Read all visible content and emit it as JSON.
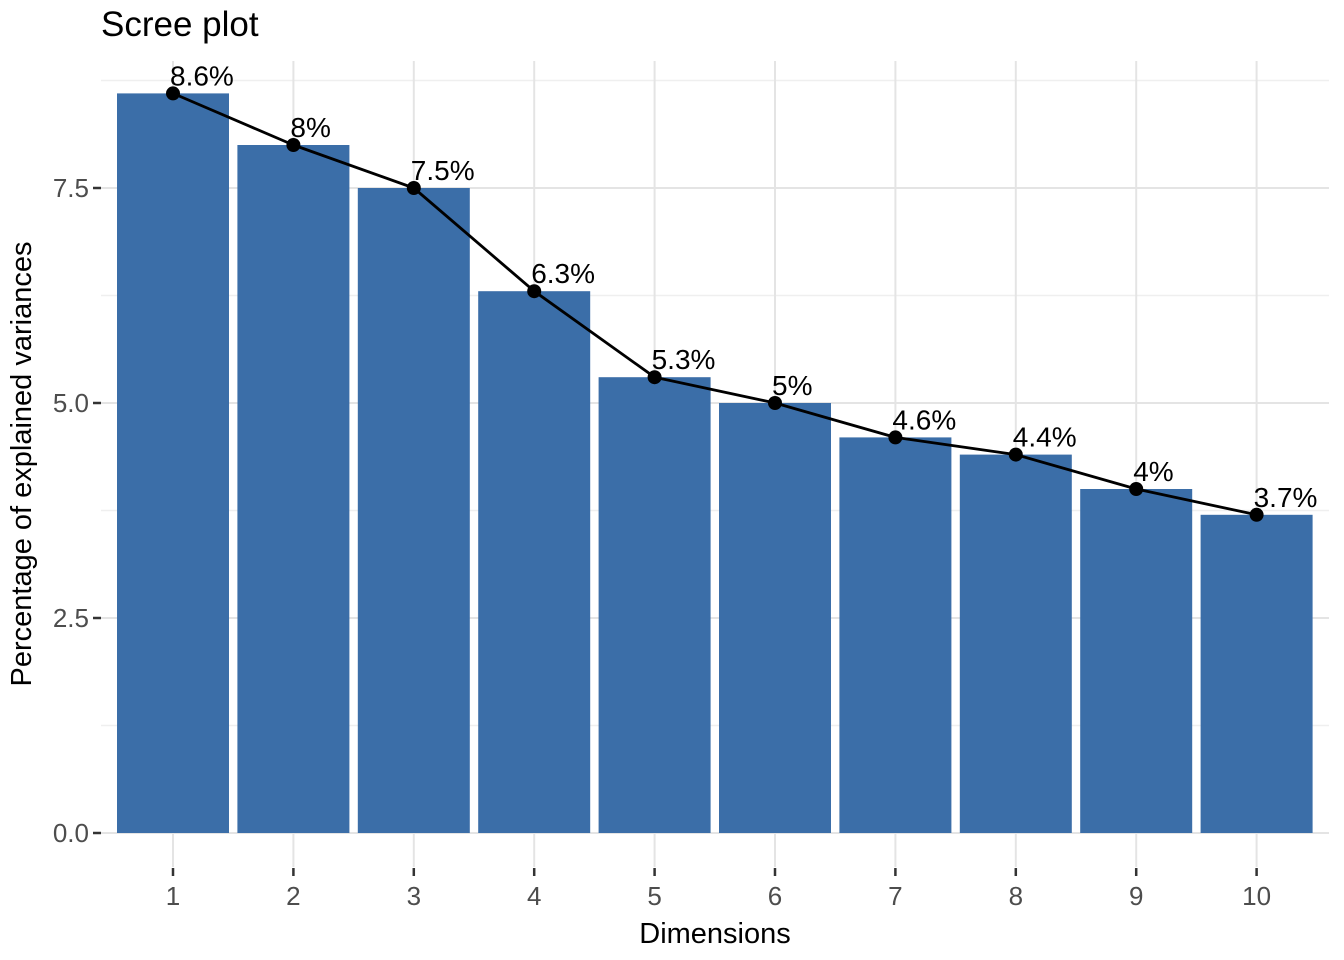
{
  "chart_data": {
    "type": "bar-line-combo",
    "title": "Scree plot",
    "xlabel": "Dimensions",
    "ylabel": "Percentage of explained variances",
    "categories": [
      "1",
      "2",
      "3",
      "4",
      "5",
      "6",
      "7",
      "8",
      "9",
      "10"
    ],
    "series": [
      {
        "name": "explained-variance-bars",
        "type": "bar",
        "values": [
          8.6,
          8,
          7.5,
          6.3,
          5.3,
          5,
          4.6,
          4.4,
          4,
          3.7
        ]
      },
      {
        "name": "explained-variance-line",
        "type": "line-with-points",
        "values": [
          8.6,
          8,
          7.5,
          6.3,
          5.3,
          5,
          4.6,
          4.4,
          4,
          3.7
        ]
      }
    ],
    "point_labels": [
      "8.6%",
      "8%",
      "7.5%",
      "6.3%",
      "5.3%",
      "5%",
      "4.6%",
      "4.4%",
      "4%",
      "3.7%"
    ],
    "ylim": [
      0,
      9.05
    ],
    "y_ticks": [
      0,
      2.5,
      5,
      7.5
    ],
    "y_tick_labels": [
      "0.0",
      "2.5",
      "5.0",
      "7.5"
    ],
    "y_minor_ticks": [
      1.25,
      3.75,
      6.25,
      8.75
    ],
    "grid": "major-and-minor",
    "legend": "none",
    "colors": {
      "bar": "#3B6EA8",
      "line": "#000000",
      "point": "#000000",
      "grid_major": "#E4E4E4",
      "grid_minor": "#EFEFEF",
      "axis_tick": "#333333",
      "tick_label": "#4D4D4D",
      "text": "#000000",
      "background": "#FFFFFF"
    }
  }
}
